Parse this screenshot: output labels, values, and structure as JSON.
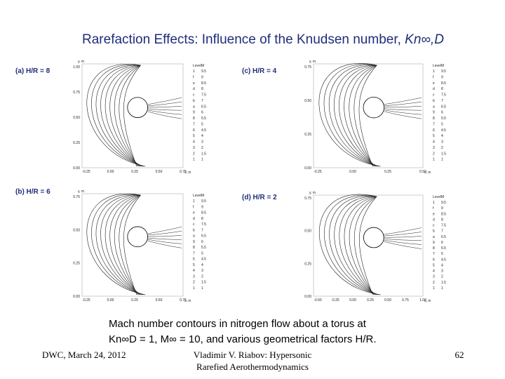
{
  "title": {
    "text": "Rarefaction Effects: Influence of the Knudsen number, ",
    "symbol": "Kn∞,D"
  },
  "panels": [
    {
      "label": "(a) H/R = 8",
      "ylabel": "y, m",
      "xlabel": "x, m",
      "yticks": [
        "1.00",
        "0.75",
        "0.50",
        "0.25",
        "0.00"
      ],
      "xticks": [
        "-0.25",
        "0.00",
        "0.25",
        "0.50",
        "0.75"
      ],
      "legend": {
        "header": [
          "Level",
          "M"
        ],
        "rows": [
          [
            "1",
            "9.5"
          ],
          [
            "f",
            "9"
          ],
          [
            "e",
            "8.5"
          ],
          [
            "d",
            "8"
          ],
          [
            "c",
            "7.5"
          ],
          [
            "b",
            "7"
          ],
          [
            "a",
            "6.5"
          ],
          [
            "9",
            "6"
          ],
          [
            "8",
            "5.5"
          ],
          [
            "7",
            "5"
          ],
          [
            "6",
            "4.5"
          ],
          [
            "5",
            "4"
          ],
          [
            "4",
            "3"
          ],
          [
            "3",
            "2"
          ],
          [
            "2",
            "1.5"
          ],
          [
            "1",
            "1"
          ]
        ]
      }
    },
    {
      "label": "(c) H/R = 4",
      "ylabel": "y, m",
      "xlabel": "x, m",
      "yticks": [
        "0.75",
        "0.50",
        "0.25",
        "0.00"
      ],
      "xticks": [
        "-0.25",
        "0.00",
        "0.25",
        "0.50"
      ],
      "legend": {
        "header": [
          "Level",
          "M"
        ],
        "rows": [
          [
            "1",
            "9.5"
          ],
          [
            "f",
            "9"
          ],
          [
            "e",
            "8.5"
          ],
          [
            "d",
            "8"
          ],
          [
            "c",
            "7.5"
          ],
          [
            "b",
            "7"
          ],
          [
            "a",
            "6.5"
          ],
          [
            "9",
            "6"
          ],
          [
            "8",
            "5.5"
          ],
          [
            "7",
            "5"
          ],
          [
            "6",
            "4.5"
          ],
          [
            "5",
            "4"
          ],
          [
            "4",
            "3"
          ],
          [
            "3",
            "2"
          ],
          [
            "2",
            "1.5"
          ],
          [
            "1",
            "1"
          ]
        ]
      }
    },
    {
      "label": "(b) H/R = 6",
      "ylabel": "y, m",
      "xlabel": "x, m",
      "yticks": [
        "0.75",
        "0.50",
        "0.25",
        "0.00"
      ],
      "xticks": [
        "-0.25",
        "0.00",
        "0.25",
        "0.50",
        "0.75"
      ],
      "legend": {
        "header": [
          "Level",
          "M"
        ],
        "rows": [
          [
            "1",
            "9.5"
          ],
          [
            "f",
            "9"
          ],
          [
            "e",
            "8.5"
          ],
          [
            "d",
            "8"
          ],
          [
            "c",
            "7.5"
          ],
          [
            "b",
            "7"
          ],
          [
            "a",
            "6.5"
          ],
          [
            "9",
            "6"
          ],
          [
            "8",
            "5.5"
          ],
          [
            "7",
            "5"
          ],
          [
            "6",
            "4.5"
          ],
          [
            "5",
            "4"
          ],
          [
            "4",
            "3"
          ],
          [
            "3",
            "2"
          ],
          [
            "2",
            "1.5"
          ],
          [
            "1",
            "1"
          ]
        ]
      }
    },
    {
      "label": "(d) H/R = 2",
      "ylabel": "y, m",
      "xlabel": "x, m",
      "yticks": [
        "0.75",
        "0.50",
        "0.25",
        "0.00"
      ],
      "xticks": [
        "-0.50",
        "-0.25",
        "0.00",
        "0.25",
        "0.50",
        "0.75",
        "1.00"
      ],
      "legend": {
        "header": [
          "Level",
          "M"
        ],
        "rows": [
          [
            "1",
            "9.5"
          ],
          [
            "f",
            "9"
          ],
          [
            "e",
            "8.5"
          ],
          [
            "d",
            "8"
          ],
          [
            "c",
            "7.5"
          ],
          [
            "b",
            "7"
          ],
          [
            "a",
            "6.5"
          ],
          [
            "9",
            "6"
          ],
          [
            "8",
            "5.5"
          ],
          [
            "7",
            "5"
          ],
          [
            "6",
            "4.5"
          ],
          [
            "5",
            "4"
          ],
          [
            "4",
            "3"
          ],
          [
            "3",
            "2"
          ],
          [
            "2",
            "1.5"
          ],
          [
            "1",
            "1"
          ]
        ]
      }
    }
  ],
  "caption": {
    "lines": [
      "Mach number contours in nitrogen flow about a torus at",
      "Kn∞D = 1, M∞ = 10, and various geometrical factors H/R."
    ]
  },
  "footer": {
    "left": "DWC, March 24, 2012",
    "center": [
      "Vladimir V. Riabov: Hypersonic",
      "Rarefied Aerothermodynamics"
    ],
    "right": "62"
  }
}
